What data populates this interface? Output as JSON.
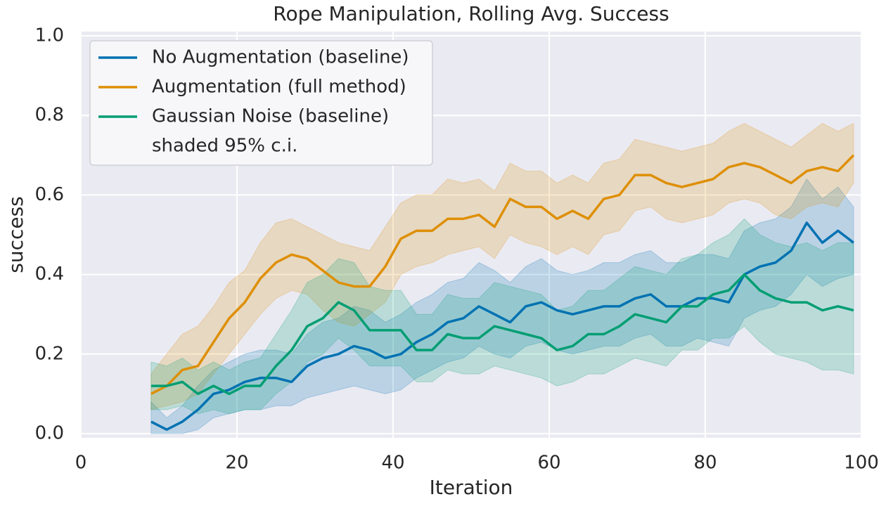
{
  "chart_data": {
    "type": "line",
    "title": "Rope Manipulation, Rolling Avg. Success",
    "x_label": "Iteration",
    "y_label": "success",
    "ci_label": "shaded 95% c.i.",
    "x": [
      9,
      11,
      13,
      15,
      17,
      19,
      21,
      23,
      25,
      27,
      29,
      31,
      33,
      35,
      37,
      39,
      41,
      43,
      45,
      47,
      49,
      51,
      53,
      55,
      57,
      59,
      61,
      63,
      65,
      67,
      69,
      71,
      73,
      75,
      77,
      79,
      81,
      83,
      85,
      87,
      89,
      91,
      93,
      95,
      97,
      99
    ],
    "series": [
      {
        "name": "No Augmentation (baseline)",
        "color": "#0072b2",
        "values": [
          0.03,
          0.01,
          0.03,
          0.06,
          0.1,
          0.11,
          0.13,
          0.14,
          0.14,
          0.13,
          0.17,
          0.19,
          0.2,
          0.22,
          0.21,
          0.19,
          0.2,
          0.23,
          0.25,
          0.28,
          0.29,
          0.32,
          0.3,
          0.28,
          0.32,
          0.33,
          0.31,
          0.3,
          0.31,
          0.32,
          0.32,
          0.34,
          0.35,
          0.32,
          0.32,
          0.34,
          0.34,
          0.33,
          0.4,
          0.42,
          0.43,
          0.46,
          0.53,
          0.48,
          0.51,
          0.48
        ],
        "lower": [
          0.0,
          0.0,
          0.0,
          0.01,
          0.04,
          0.05,
          0.06,
          0.06,
          0.07,
          0.07,
          0.09,
          0.1,
          0.11,
          0.12,
          0.11,
          0.1,
          0.11,
          0.14,
          0.16,
          0.18,
          0.19,
          0.22,
          0.2,
          0.19,
          0.22,
          0.23,
          0.21,
          0.2,
          0.21,
          0.22,
          0.22,
          0.24,
          0.25,
          0.22,
          0.22,
          0.24,
          0.23,
          0.22,
          0.29,
          0.31,
          0.32,
          0.35,
          0.4,
          0.37,
          0.39,
          0.4
        ],
        "upper": [
          0.08,
          0.04,
          0.07,
          0.12,
          0.16,
          0.18,
          0.2,
          0.21,
          0.21,
          0.2,
          0.25,
          0.28,
          0.29,
          0.32,
          0.31,
          0.28,
          0.3,
          0.33,
          0.35,
          0.38,
          0.39,
          0.43,
          0.41,
          0.38,
          0.42,
          0.44,
          0.41,
          0.4,
          0.41,
          0.43,
          0.43,
          0.45,
          0.46,
          0.43,
          0.43,
          0.45,
          0.45,
          0.44,
          0.51,
          0.53,
          0.54,
          0.57,
          0.64,
          0.59,
          0.62,
          0.57
        ]
      },
      {
        "name": "Augmentation (full method)",
        "color": "#de8f05",
        "values": [
          0.1,
          0.12,
          0.16,
          0.17,
          0.23,
          0.29,
          0.33,
          0.39,
          0.43,
          0.45,
          0.44,
          0.41,
          0.38,
          0.37,
          0.37,
          0.42,
          0.49,
          0.51,
          0.51,
          0.54,
          0.54,
          0.55,
          0.52,
          0.59,
          0.57,
          0.57,
          0.54,
          0.56,
          0.54,
          0.59,
          0.6,
          0.65,
          0.65,
          0.63,
          0.62,
          0.63,
          0.64,
          0.67,
          0.68,
          0.67,
          0.65,
          0.63,
          0.66,
          0.67,
          0.66,
          0.7
        ],
        "lower": [
          0.06,
          0.07,
          0.08,
          0.1,
          0.15,
          0.2,
          0.25,
          0.3,
          0.34,
          0.36,
          0.35,
          0.31,
          0.28,
          0.27,
          0.3,
          0.33,
          0.4,
          0.42,
          0.43,
          0.45,
          0.46,
          0.47,
          0.44,
          0.5,
          0.48,
          0.47,
          0.45,
          0.47,
          0.45,
          0.5,
          0.51,
          0.56,
          0.57,
          0.54,
          0.53,
          0.54,
          0.55,
          0.58,
          0.59,
          0.58,
          0.55,
          0.54,
          0.57,
          0.58,
          0.57,
          0.63
        ],
        "upper": [
          0.15,
          0.2,
          0.25,
          0.27,
          0.32,
          0.38,
          0.41,
          0.48,
          0.53,
          0.54,
          0.52,
          0.5,
          0.48,
          0.47,
          0.46,
          0.52,
          0.58,
          0.6,
          0.6,
          0.64,
          0.63,
          0.64,
          0.61,
          0.68,
          0.66,
          0.66,
          0.63,
          0.65,
          0.63,
          0.68,
          0.69,
          0.74,
          0.73,
          0.72,
          0.71,
          0.72,
          0.73,
          0.76,
          0.78,
          0.76,
          0.74,
          0.72,
          0.75,
          0.78,
          0.76,
          0.78
        ]
      },
      {
        "name": "Gaussian Noise (baseline)",
        "color": "#029e73",
        "values": [
          0.12,
          0.12,
          0.13,
          0.1,
          0.12,
          0.1,
          0.12,
          0.12,
          0.17,
          0.21,
          0.27,
          0.29,
          0.33,
          0.31,
          0.26,
          0.26,
          0.26,
          0.21,
          0.21,
          0.25,
          0.24,
          0.24,
          0.27,
          0.26,
          0.25,
          0.24,
          0.21,
          0.22,
          0.25,
          0.25,
          0.27,
          0.3,
          0.29,
          0.28,
          0.32,
          0.32,
          0.35,
          0.36,
          0.4,
          0.36,
          0.34,
          0.33,
          0.33,
          0.31,
          0.32,
          0.31
        ],
        "lower": [
          0.06,
          0.06,
          0.07,
          0.05,
          0.06,
          0.05,
          0.06,
          0.06,
          0.1,
          0.13,
          0.18,
          0.2,
          0.24,
          0.21,
          0.17,
          0.17,
          0.17,
          0.13,
          0.13,
          0.16,
          0.15,
          0.15,
          0.17,
          0.16,
          0.15,
          0.14,
          0.12,
          0.13,
          0.15,
          0.15,
          0.17,
          0.19,
          0.18,
          0.17,
          0.21,
          0.21,
          0.24,
          0.24,
          0.27,
          0.23,
          0.2,
          0.19,
          0.18,
          0.16,
          0.16,
          0.15
        ],
        "upper": [
          0.18,
          0.17,
          0.19,
          0.16,
          0.18,
          0.16,
          0.18,
          0.19,
          0.25,
          0.31,
          0.38,
          0.4,
          0.44,
          0.43,
          0.37,
          0.36,
          0.36,
          0.3,
          0.3,
          0.35,
          0.34,
          0.34,
          0.38,
          0.37,
          0.36,
          0.35,
          0.31,
          0.32,
          0.36,
          0.36,
          0.39,
          0.42,
          0.41,
          0.4,
          0.44,
          0.45,
          0.48,
          0.5,
          0.54,
          0.5,
          0.48,
          0.47,
          0.48,
          0.46,
          0.48,
          0.48
        ]
      }
    ],
    "xlim": [
      0,
      100
    ],
    "xticks": [
      0,
      20,
      40,
      60,
      80,
      100
    ],
    "ylim": [
      0,
      1
    ],
    "yticks": [
      {
        "value": 0,
        "label": "0.0"
      },
      0.2,
      0.4,
      0.6,
      0.8,
      {
        "value": 1,
        "label": "1.0"
      }
    ],
    "grid": true,
    "legend": "upper left"
  }
}
